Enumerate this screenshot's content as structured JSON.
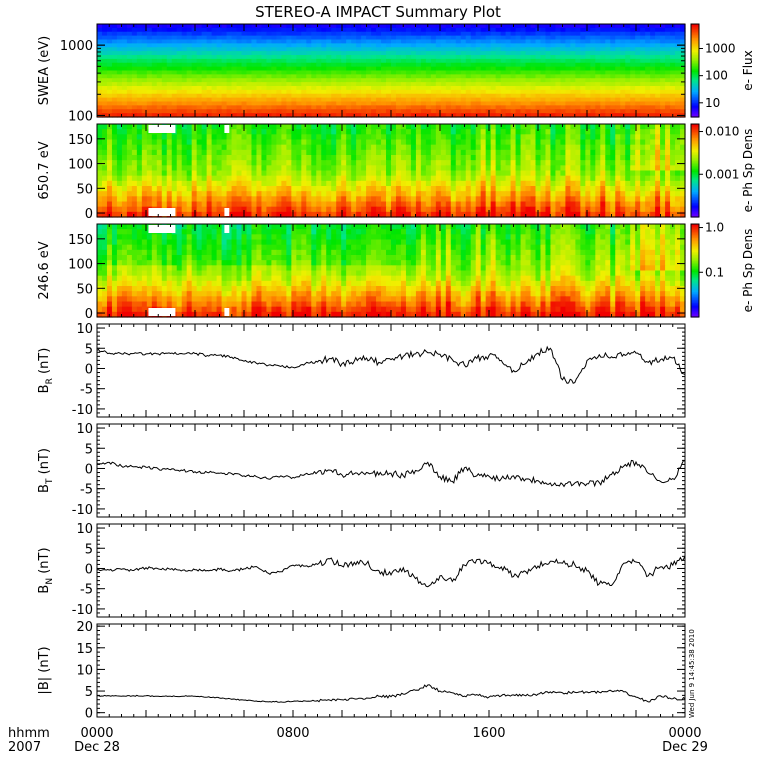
{
  "title": "STEREO-A IMPACT Summary Plot",
  "timestamp": "Wed Jun  9 14:45:38 2010",
  "time_axis": {
    "row1_label": "hhmm",
    "row2_label": "2007",
    "ticks": [
      {
        "hour": 0,
        "time": "0000",
        "date": "Dec 28"
      },
      {
        "hour": 8,
        "time": "0800",
        "date": ""
      },
      {
        "hour": 16,
        "time": "1600",
        "date": ""
      },
      {
        "hour": 24,
        "time": "0000",
        "date": "Dec 29"
      }
    ],
    "range_hours": [
      0,
      24
    ]
  },
  "chart_data": [
    {
      "type": "heatmap",
      "ylabel": "SWEA (eV)",
      "yscale": "log",
      "ylim": [
        95,
        2000
      ],
      "yticks": [
        {
          "v": 100,
          "t": "100"
        },
        {
          "v": 1000,
          "t": "1000"
        }
      ],
      "colorbar": {
        "label": "e- Flux",
        "scale": "log",
        "range": [
          3,
          8000
        ],
        "ticks": [
          {
            "v": 10,
            "t": "10"
          },
          {
            "v": 100,
            "t": "100"
          },
          {
            "v": 1000,
            "t": "1000"
          }
        ]
      }
    },
    {
      "type": "heatmap",
      "ylabel": "650.7 eV",
      "yscale": "linear",
      "ylim": [
        -8,
        180
      ],
      "yticks": [
        {
          "v": 0,
          "t": "0"
        },
        {
          "v": 50,
          "t": "50"
        },
        {
          "v": 100,
          "t": "100"
        },
        {
          "v": 150,
          "t": "150"
        }
      ],
      "colorbar": {
        "label": "e- Ph Sp Dens",
        "scale": "log",
        "range": [
          0.0001,
          0.015
        ],
        "ticks": [
          {
            "v": 0.001,
            "t": "0.001"
          },
          {
            "v": 0.01,
            "t": "0.010"
          }
        ]
      }
    },
    {
      "type": "heatmap",
      "ylabel": "246.6 eV",
      "yscale": "linear",
      "ylim": [
        -8,
        180
      ],
      "yticks": [
        {
          "v": 0,
          "t": "0"
        },
        {
          "v": 50,
          "t": "50"
        },
        {
          "v": 100,
          "t": "100"
        },
        {
          "v": 150,
          "t": "150"
        }
      ],
      "colorbar": {
        "label": "e- Ph Sp Dens",
        "scale": "log",
        "range": [
          0.01,
          1.2
        ],
        "ticks": [
          {
            "v": 0.1,
            "t": "0.1"
          },
          {
            "v": 1,
            "t": "1.0"
          }
        ]
      }
    },
    {
      "type": "line",
      "ylabel": "B_R (nT)",
      "ylim": [
        -12,
        11
      ],
      "yticks": [
        -10,
        -5,
        0,
        5,
        10
      ],
      "x": [
        0,
        0.5,
        1,
        1.5,
        2,
        2.5,
        3,
        3.5,
        4,
        4.5,
        5,
        5.5,
        6,
        6.5,
        7,
        7.5,
        8,
        8.5,
        9,
        9.5,
        10,
        10.5,
        11,
        11.5,
        12,
        12.5,
        13,
        13.5,
        14,
        14.5,
        15,
        15.5,
        16,
        16.5,
        17,
        17.5,
        18,
        18.5,
        19,
        19.5,
        20,
        20.5,
        21,
        21.5,
        22,
        22.5,
        23,
        23.5,
        24
      ],
      "y": [
        4.5,
        3.8,
        3.6,
        3.7,
        3.6,
        3.6,
        3.7,
        3.6,
        3.7,
        3.2,
        3.3,
        2.8,
        1.8,
        1.3,
        0.8,
        0.5,
        0.3,
        1.2,
        1.6,
        2.5,
        1.2,
        1.8,
        2.6,
        1.5,
        2.2,
        3.0,
        3.6,
        3.9,
        3.5,
        2.2,
        0.8,
        2.5,
        3.2,
        2.0,
        -0.5,
        1.2,
        3.8,
        5.0,
        -2.8,
        -3.5,
        2.0,
        3.4,
        2.9,
        3.5,
        3.8,
        1.5,
        2.2,
        2.6,
        -1.5
      ]
    },
    {
      "type": "line",
      "ylabel": "B_T (nT)",
      "ylim": [
        -12,
        11
      ],
      "yticks": [
        -10,
        -5,
        0,
        5,
        10
      ],
      "x": [
        0,
        0.5,
        1,
        1.5,
        2,
        2.5,
        3,
        3.5,
        4,
        4.5,
        5,
        5.5,
        6,
        6.5,
        7,
        7.5,
        8,
        8.5,
        9,
        9.5,
        10,
        10.5,
        11,
        11.5,
        12,
        12.5,
        13,
        13.5,
        14,
        14.5,
        15,
        15.5,
        16,
        16.5,
        17,
        17.5,
        18,
        18.5,
        19,
        19.5,
        20,
        20.5,
        21,
        21.5,
        22,
        22.5,
        23,
        23.5,
        24
      ],
      "y": [
        1.2,
        1.5,
        0.6,
        0.4,
        0.3,
        -0.1,
        -0.3,
        -0.5,
        -0.8,
        -1.0,
        -1.2,
        -1.3,
        -1.8,
        -2.0,
        -2.6,
        -1.8,
        -2.2,
        -1.4,
        -0.9,
        -0.4,
        -1.6,
        -1.3,
        -1.0,
        -1.6,
        -1.2,
        -1.8,
        -0.5,
        1.5,
        -2.0,
        -3.2,
        0.2,
        -1.8,
        -1.9,
        -2.5,
        -1.8,
        -2.6,
        -3.0,
        -3.6,
        -3.9,
        -3.6,
        -3.8,
        -3.5,
        -1.5,
        0.6,
        1.6,
        -1.2,
        -3.2,
        -2.5,
        1.8
      ]
    },
    {
      "type": "line",
      "ylabel": "B_N (nT)",
      "ylim": [
        -12,
        11
      ],
      "yticks": [
        -10,
        -5,
        0,
        5,
        10
      ],
      "x": [
        0,
        0.5,
        1,
        1.5,
        2,
        2.5,
        3,
        3.5,
        4,
        4.5,
        5,
        5.5,
        6,
        6.5,
        7,
        7.5,
        8,
        8.5,
        9,
        9.5,
        10,
        10.5,
        11,
        11.5,
        12,
        12.5,
        13,
        13.5,
        14,
        14.5,
        15,
        15.5,
        16,
        16.5,
        17,
        17.5,
        18,
        18.5,
        19,
        19.5,
        20,
        20.5,
        21,
        21.5,
        22,
        22.5,
        23,
        23.5,
        24
      ],
      "y": [
        -0.3,
        -0.4,
        -0.2,
        -0.5,
        0.2,
        -0.1,
        -0.2,
        -0.4,
        -0.3,
        -0.5,
        -0.2,
        -0.6,
        -0.1,
        0.5,
        -1.2,
        -0.8,
        0.8,
        0.6,
        1.0,
        2.4,
        0.6,
        1.5,
        1.2,
        -0.5,
        -1.6,
        0.2,
        -2.5,
        -4.5,
        -1.8,
        -3.2,
        0.8,
        2.2,
        1.3,
        0.4,
        -2.0,
        -0.8,
        0.6,
        1.8,
        1.3,
        0.9,
        -0.6,
        -3.8,
        -4.2,
        1.3,
        1.6,
        -1.8,
        0.4,
        0.8,
        3.2
      ]
    },
    {
      "type": "line",
      "ylabel": "|B| (nT)",
      "ylim": [
        -1,
        20.5
      ],
      "yticks": [
        0,
        5,
        10,
        15,
        20
      ],
      "x": [
        0,
        0.5,
        1,
        1.5,
        2,
        2.5,
        3,
        3.5,
        4,
        4.5,
        5,
        5.5,
        6,
        6.5,
        7,
        7.5,
        8,
        8.5,
        9,
        9.5,
        10,
        10.5,
        11,
        11.5,
        12,
        12.5,
        13,
        13.5,
        14,
        14.5,
        15,
        15.5,
        16,
        16.5,
        17,
        17.5,
        18,
        18.5,
        19,
        19.5,
        20,
        20.5,
        21,
        21.5,
        22,
        22.5,
        23,
        23.5,
        24
      ],
      "y": [
        3.9,
        3.9,
        3.8,
        3.9,
        3.9,
        3.8,
        3.8,
        3.8,
        3.8,
        3.6,
        3.4,
        3.1,
        2.9,
        2.7,
        2.5,
        2.5,
        2.6,
        2.7,
        2.8,
        2.9,
        3.0,
        3.2,
        3.4,
        3.8,
        3.7,
        4.3,
        5.2,
        6.4,
        5.0,
        4.6,
        3.8,
        4.2,
        3.6,
        3.9,
        4.1,
        3.9,
        4.3,
        4.8,
        4.6,
        4.7,
        4.8,
        4.7,
        5.0,
        4.8,
        3.6,
        2.5,
        3.9,
        3.2,
        3.2
      ]
    }
  ]
}
